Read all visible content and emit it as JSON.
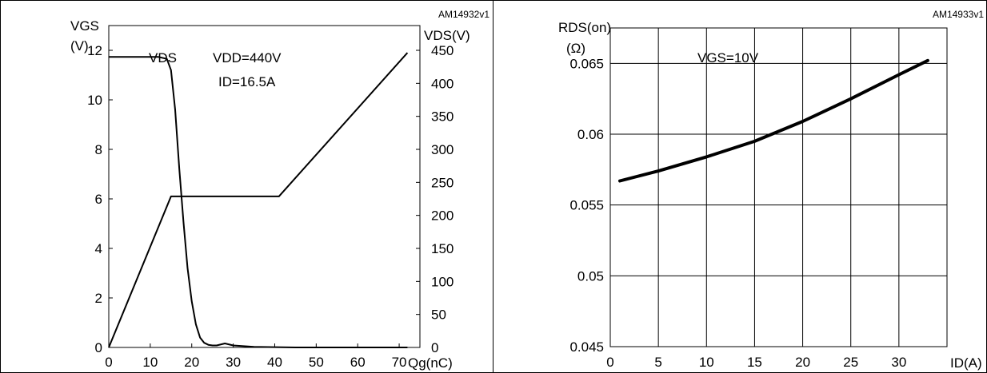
{
  "chart_data": [
    {
      "type": "line",
      "figure_id": "AM14932v1",
      "title": "",
      "xlabel": "Qg(nC)",
      "ylabel": "VGS",
      "ylabel_unit": "(V)",
      "ylabel_right": "VDS(V)",
      "xlim": [
        0,
        75
      ],
      "ylim": [
        0,
        13
      ],
      "ylim_right": [
        0,
        487.5
      ],
      "x_ticks": [
        0,
        10,
        20,
        30,
        40,
        50,
        60,
        70
      ],
      "y_ticks": [
        0,
        2,
        4,
        6,
        8,
        10,
        12
      ],
      "y_ticks_right": [
        0,
        50,
        100,
        150,
        200,
        250,
        300,
        350,
        400,
        450
      ],
      "grid": false,
      "annotations": [
        "VDS",
        "VDD=440V",
        "ID=16.5A"
      ],
      "series": [
        {
          "name": "",
          "axis": "left",
          "x": [
            0,
            15,
            41,
            72
          ],
          "y": [
            0,
            6.1,
            6.1,
            11.9
          ]
        },
        {
          "name": "VDS",
          "axis": "right",
          "x": [
            0,
            12,
            14,
            15,
            16,
            17,
            18,
            19,
            20,
            21,
            22,
            23,
            24,
            25,
            26,
            28,
            30,
            35,
            45,
            72
          ],
          "y": [
            440,
            440,
            437,
            420,
            360,
            270,
            190,
            120,
            70,
            35,
            15,
            7,
            4,
            3,
            3,
            6,
            3,
            1,
            0,
            0
          ]
        }
      ]
    },
    {
      "type": "line",
      "figure_id": "AM14933v1",
      "title": "",
      "xlabel": "ID(A)",
      "ylabel": "RDS(on)",
      "ylabel_unit": "(Ω)",
      "xlim": [
        0,
        35
      ],
      "ylim": [
        0.045,
        0.0675
      ],
      "x_ticks": [
        0,
        5,
        10,
        15,
        20,
        25,
        30
      ],
      "y_ticks": [
        0.045,
        0.05,
        0.055,
        0.06,
        0.065
      ],
      "grid": true,
      "annotations": [
        "VGS=10V"
      ],
      "series": [
        {
          "name": "",
          "x": [
            1,
            5,
            10,
            15,
            20,
            25,
            30,
            33
          ],
          "y": [
            0.0567,
            0.0574,
            0.0584,
            0.0595,
            0.0609,
            0.0625,
            0.0642,
            0.0652
          ]
        }
      ]
    }
  ]
}
